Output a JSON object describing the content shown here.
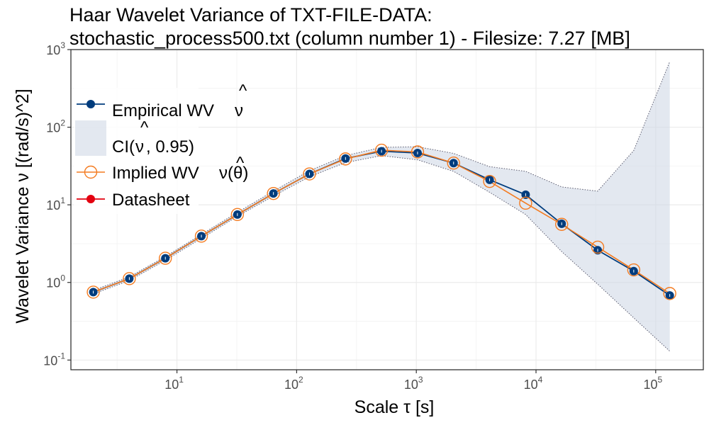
{
  "title_line1": "Haar Wavelet Variance of TXT-FILE-DATA:",
  "title_line2": "stochastic_process500.txt (column number 1) - Filesize: 7.27 [MB]",
  "colors": {
    "empirical": "#003c7d",
    "implied": "#f47b20",
    "datasheet": "#e3000f",
    "ci_fill": "#d0d8e6",
    "ci_line": "#5a5a6e",
    "grid_major": "#ebebeb",
    "grid_minor": "#f4f4f4"
  },
  "chart_data": {
    "type": "line",
    "x_scale": "log10",
    "y_scale": "log10",
    "xlim": [
      1.3,
      250000
    ],
    "ylim": [
      0.075,
      1000
    ],
    "grid": true,
    "legend_position": "top-left",
    "xlabel_text": "Scale",
    "xlabel_symbol": "τ",
    "xlabel_unit": "[s]",
    "ylabel_text": "Wavelet Variance",
    "ylabel_symbol": "ν",
    "ylabel_unit": "[(rad/s)^2]",
    "x_ticks": [
      {
        "value": 10,
        "base": "10",
        "exp": "1"
      },
      {
        "value": 100,
        "base": "10",
        "exp": "2"
      },
      {
        "value": 1000,
        "base": "10",
        "exp": "3"
      },
      {
        "value": 10000,
        "base": "10",
        "exp": "4"
      },
      {
        "value": 100000,
        "base": "10",
        "exp": "5"
      }
    ],
    "y_ticks": [
      {
        "value": 0.1,
        "base": "10",
        "exp": "-1"
      },
      {
        "value": 1,
        "base": "10",
        "exp": "0"
      },
      {
        "value": 10,
        "base": "10",
        "exp": "1"
      },
      {
        "value": 100,
        "base": "10",
        "exp": "2"
      },
      {
        "value": 1000,
        "base": "10",
        "exp": "3"
      }
    ],
    "x": [
      2,
      4,
      8,
      16,
      32,
      64,
      128,
      256,
      512,
      1024,
      2048,
      4096,
      8192,
      16384,
      32768,
      65536,
      131072
    ],
    "ci_upper": [
      0.79,
      1.18,
      2.15,
      4.15,
      8.0,
      15.0,
      27.5,
      43,
      55,
      56,
      46,
      31,
      27,
      17,
      15,
      50,
      700
    ],
    "ci_lower": [
      0.71,
      1.06,
      1.93,
      3.7,
      7.1,
      13.0,
      23,
      35,
      43,
      38,
      27,
      14.5,
      7.5,
      2.5,
      0.95,
      0.35,
      0.13
    ],
    "series": [
      {
        "name": "Empirical WV",
        "symbol": "ν",
        "values": [
          0.75,
          1.12,
          2.05,
          3.95,
          7.5,
          14,
          25,
          39.5,
          49,
          46.5,
          34.5,
          21,
          13.5,
          5.7,
          2.6,
          1.4,
          0.68
        ]
      },
      {
        "name": "Implied WV",
        "symbol": "ν(θ)",
        "values": [
          0.75,
          1.12,
          2.05,
          3.95,
          7.5,
          14,
          25,
          39,
          50.5,
          48,
          34.5,
          20,
          10.5,
          5.6,
          2.85,
          1.45,
          0.72
        ]
      }
    ],
    "legend": [
      {
        "key": "empirical",
        "label": "Empirical WV",
        "math": "ν",
        "hat": "^"
      },
      {
        "key": "ci",
        "label": "CI(",
        "math": "ν",
        "hat": "^",
        "suffix": ", 0.95)"
      },
      {
        "key": "implied",
        "label": "Implied WV",
        "math": "ν(θ)",
        "hat": "^"
      },
      {
        "key": "datasheet",
        "label": "Datasheet"
      }
    ]
  }
}
